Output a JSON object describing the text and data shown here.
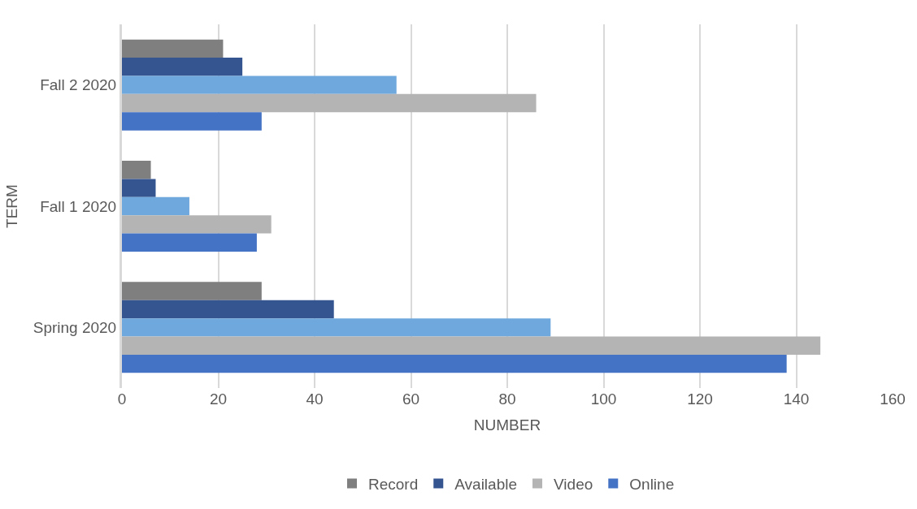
{
  "chart_data": {
    "type": "bar",
    "orientation": "horizontal",
    "xlabel": "NUMBER",
    "ylabel": "TERM",
    "categories": [
      "Fall 2 2020",
      "Fall 1 2020",
      "Spring 2020"
    ],
    "series": [
      {
        "name": "Record",
        "color": "#7f7f7f",
        "values": [
          21,
          6,
          29
        ]
      },
      {
        "name": "Available",
        "color": "#34558f",
        "values": [
          25,
          7,
          44
        ]
      },
      {
        "color": "#6fa8dc",
        "values": [
          57,
          14,
          89
        ]
      },
      {
        "name": "Video",
        "color": "#b4b4b4",
        "values": [
          86,
          31,
          145
        ]
      },
      {
        "name": "Online",
        "color": "#4472c4",
        "values": [
          29,
          28,
          138
        ]
      }
    ],
    "xlim": [
      0,
      160
    ],
    "xticks": [
      0,
      20,
      40,
      60,
      80,
      100,
      120,
      140,
      160
    ],
    "grid": "x",
    "legend": "bottom"
  }
}
